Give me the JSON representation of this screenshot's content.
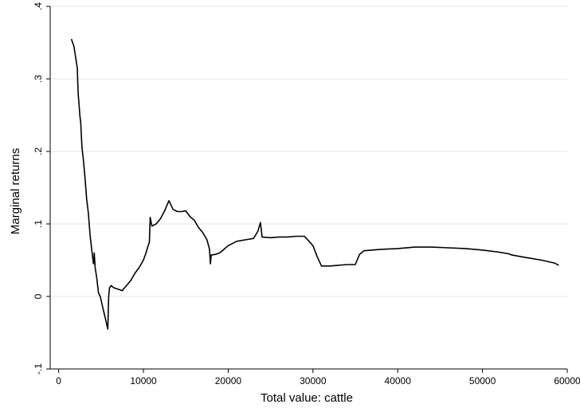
{
  "chart_data": {
    "type": "line",
    "title": "",
    "xlabel": "Total value: cattle",
    "ylabel": "Marginal returns",
    "xlim": [
      -1000,
      60000
    ],
    "ylim": [
      -0.1,
      0.4
    ],
    "x_ticks": [
      0,
      10000,
      20000,
      30000,
      40000,
      50000,
      60000
    ],
    "x_tick_labels": [
      "0",
      "10000",
      "20000",
      "30000",
      "40000",
      "50000",
      "60000"
    ],
    "y_ticks": [
      -0.1,
      0,
      0.1,
      0.2,
      0.3,
      0.4
    ],
    "y_tick_labels": [
      "-.1",
      "0",
      ".1",
      ".2",
      ".3",
      ".4"
    ],
    "grid": true,
    "legend": "none",
    "series": [
      {
        "color": "#000000",
        "x": [
          1500,
          1800,
          2000,
          2200,
          2300,
          2400,
          2500,
          2600,
          2750,
          2900,
          3100,
          3300,
          3500,
          3700,
          3900,
          4000,
          4100,
          4200,
          4300,
          4500,
          4700,
          4900,
          5100,
          5300,
          5500,
          5700,
          5800,
          5900,
          6000,
          6200,
          6500,
          7000,
          7500,
          8000,
          8500,
          9000,
          9500,
          10000,
          10300,
          10500,
          10700,
          10800,
          11000,
          11500,
          12000,
          12500,
          13000,
          13500,
          14000,
          14500,
          15000,
          15500,
          16000,
          16500,
          17000,
          17500,
          17800,
          17900,
          18000,
          18500,
          19000,
          19500,
          20000,
          21000,
          22000,
          23000,
          23500,
          23800,
          24000,
          25000,
          26000,
          27000,
          28000,
          29000,
          30000,
          30500,
          31000,
          32000,
          33000,
          34000,
          35000,
          35500,
          36000,
          38000,
          40000,
          42000,
          44000,
          46000,
          48000,
          50000,
          52000,
          53000,
          53500,
          55000,
          57000,
          58500,
          59000
        ],
        "y": [
          0.355,
          0.345,
          0.33,
          0.315,
          0.28,
          0.265,
          0.25,
          0.24,
          0.205,
          0.19,
          0.165,
          0.135,
          0.115,
          0.085,
          0.065,
          0.055,
          0.045,
          0.06,
          0.04,
          0.025,
          0.005,
          0.0,
          -0.01,
          -0.02,
          -0.03,
          -0.04,
          -0.045,
          0.0,
          0.012,
          0.015,
          0.012,
          0.01,
          0.008,
          0.015,
          0.022,
          0.032,
          0.04,
          0.05,
          0.06,
          0.068,
          0.075,
          0.109,
          0.097,
          0.1,
          0.107,
          0.118,
          0.132,
          0.12,
          0.117,
          0.117,
          0.118,
          0.11,
          0.105,
          0.095,
          0.088,
          0.078,
          0.065,
          0.045,
          0.057,
          0.058,
          0.06,
          0.065,
          0.07,
          0.076,
          0.078,
          0.08,
          0.09,
          0.102,
          0.082,
          0.081,
          0.082,
          0.082,
          0.083,
          0.083,
          0.07,
          0.055,
          0.042,
          0.042,
          0.043,
          0.044,
          0.044,
          0.058,
          0.063,
          0.065,
          0.066,
          0.068,
          0.068,
          0.067,
          0.066,
          0.064,
          0.061,
          0.059,
          0.057,
          0.054,
          0.05,
          0.046,
          0.043
        ]
      }
    ]
  }
}
